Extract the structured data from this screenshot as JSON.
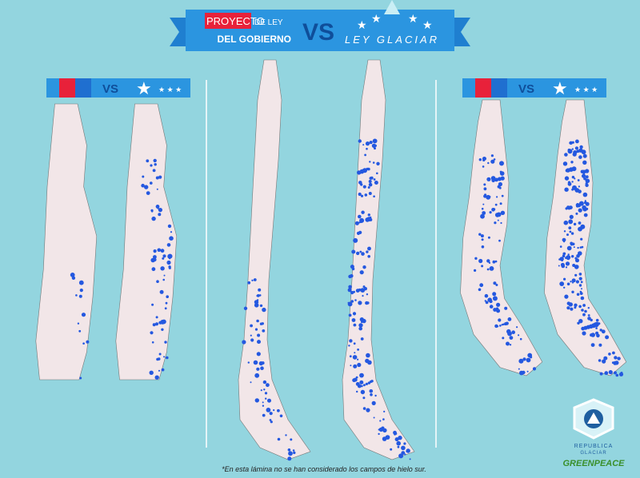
{
  "header": {
    "left_title_1": "PROYECTO",
    "left_title_2": "DE LEY",
    "left_title_3": "DEL GOBIERNO",
    "vs": "VS",
    "right_title": "LEY GLACIAR"
  },
  "panels": [
    {
      "vs": "VS"
    },
    {
      "vs": "VS"
    }
  ],
  "footnote": "*En esta lámina no se han considerado los campos de hielo sur.",
  "logo": {
    "name_1": "REPUBLICA",
    "name_2": "GLACIAR"
  },
  "brand": "GREENPEACE"
}
